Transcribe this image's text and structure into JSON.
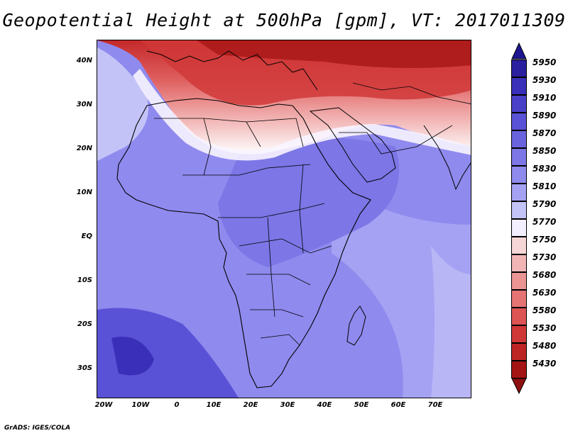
{
  "title": "Geopotential Height at 500hPa [gpm], VT: 2017011309",
  "credit": "GrADS: IGES/COLA",
  "map": {
    "region": "Africa",
    "lat_ticks": [
      "40N",
      "30N",
      "20N",
      "10N",
      "EQ",
      "10S",
      "20S",
      "30S"
    ],
    "lon_ticks": [
      "20W",
      "10W",
      "0",
      "10E",
      "20E",
      "30E",
      "40E",
      "50E",
      "60E",
      "70E"
    ],
    "extent": {
      "lon_min": -22,
      "lon_max": 80,
      "lat_min": -37,
      "lat_max": 45
    }
  },
  "colorbar": {
    "labels": [
      "5950",
      "5930",
      "5910",
      "5890",
      "5870",
      "5850",
      "5830",
      "5810",
      "5790",
      "5770",
      "5750",
      "5730",
      "5680",
      "5630",
      "5580",
      "5530",
      "5480",
      "5430"
    ],
    "colors": [
      "#2a1f9e",
      "#3a2fb8",
      "#4a40c8",
      "#5a52d6",
      "#6a63de",
      "#7c76e6",
      "#8f8aee",
      "#a5a2f3",
      "#c4c3f8",
      "#f3efff",
      "#f6d6d6",
      "#f2b5b5",
      "#eb9494",
      "#e47474",
      "#dc5454",
      "#d03838",
      "#bd2424",
      "#a41414"
    ],
    "top_arrow_color": "#1e1690",
    "bottom_arrow_color": "#8e1010"
  }
}
